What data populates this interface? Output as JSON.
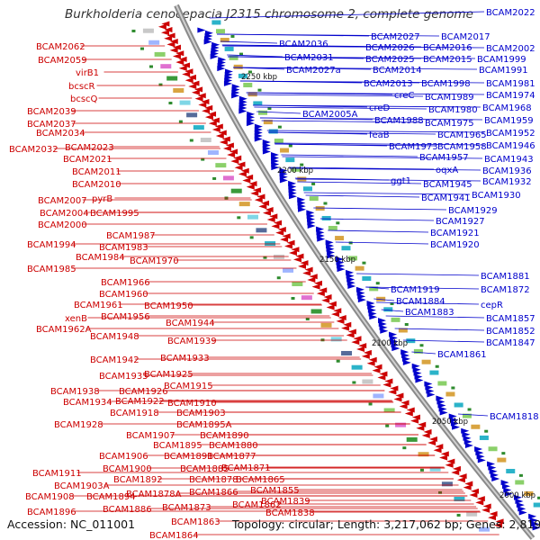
{
  "title": "Burkholderia cenocepacia J2315 chromosome 2, complete genome",
  "accession": "Accession: NC_011001",
  "summary": "Topology: circular; Length: 3,217,062 bp; Genes: 2,819",
  "colors": {
    "red": "#cc0000",
    "blue": "#0000cc",
    "backbone": "#8a8a8a"
  },
  "scale_labels": [
    "2250 kbp",
    "2200 kbp",
    "2150 kbp",
    "2100 kbp",
    "2050 kbp",
    "2000 kbp"
  ],
  "red_labels": [
    "BCAM2062",
    "BCAM2059",
    "virB1",
    "bcscR",
    "bcscQ",
    "BCAM2039",
    "BCAM2037",
    "BCAM2034",
    "BCAM2032",
    "BCAM2023",
    "BCAM2021",
    "BCAM2011",
    "BCAM2010",
    "BCAM2007",
    "pyrB",
    "BCAM2004",
    "BCAM1995",
    "BCAM2000",
    "BCAM1987",
    "BCAM1994",
    "BCAM1983",
    "BCAM1984",
    "BCAM1970",
    "BCAM1985",
    "BCAM1966",
    "BCAM1960",
    "BCAM1961",
    "BCAM1950",
    "xenB",
    "BCAM1956",
    "BCAM1962A",
    "BCAM1944",
    "BCAM1948",
    "BCAM1939",
    "BCAM1942",
    "BCAM1933",
    "BCAM1935",
    "BCAM1925",
    "BCAM1938",
    "BCAM1926",
    "BCAM1915",
    "BCAM1934",
    "BCAM1922",
    "BCAM1910",
    "BCAM1918",
    "BCAM1903",
    "BCAM1928",
    "BCAM1895A",
    "BCAM1907",
    "BCAM1890",
    "BCAM1895",
    "BCAM1880",
    "BCAM1906",
    "BCAM1891",
    "BCAM1877",
    "BCAM1900",
    "BCAM1885",
    "BCAM1871",
    "BCAM1911",
    "BCAM1892",
    "BCAM1878",
    "BCAM1865",
    "BCAM1903A",
    "BCAM1866",
    "BCAM1855",
    "BCAM1908",
    "BCAM1894",
    "BCAM1878A",
    "BCAM1896",
    "BCAM1886",
    "BCAM1873",
    "BCAM1862",
    "BCAM1839",
    "BCAM1838",
    "BCAM1863",
    "BCAM1864"
  ],
  "blue_labels": [
    "BCAM2022",
    "BCAM2027",
    "BCAM2017",
    "BCAM2036",
    "BCAM2026",
    "BCAM2016",
    "BCAM2002",
    "BCAM2031",
    "BCAM2025",
    "BCAM2015",
    "BCAM1999",
    "BCAM2027a",
    "BCAM2014",
    "BCAM1991",
    "BCAM2013",
    "BCAM1998",
    "BCAM1981",
    "creC",
    "BCAM1989",
    "BCAM1974",
    "creD",
    "BCAM1980",
    "BCAM1968",
    "BCAM2005A",
    "BCAM1988",
    "BCAM1975",
    "BCAM1959",
    "feaB",
    "BCAM1965",
    "BCAM1952",
    "BCAM1973",
    "BCAM1958",
    "BCAM1946",
    "BCAM1957",
    "BCAM1943",
    "oqxA",
    "BCAM1936",
    "ggt1",
    "BCAM1945",
    "BCAM1932",
    "BCAM1941",
    "BCAM1930",
    "BCAM1929",
    "BCAM1927",
    "BCAM1921",
    "BCAM1920",
    "BCAM1881",
    "BCAM1919",
    "BCAM1872",
    "BCAM1884",
    "cepR",
    "BCAM1883",
    "BCAM1857",
    "BCAM1852",
    "BCAM1847",
    "BCAM1861",
    "BCAM1818"
  ]
}
